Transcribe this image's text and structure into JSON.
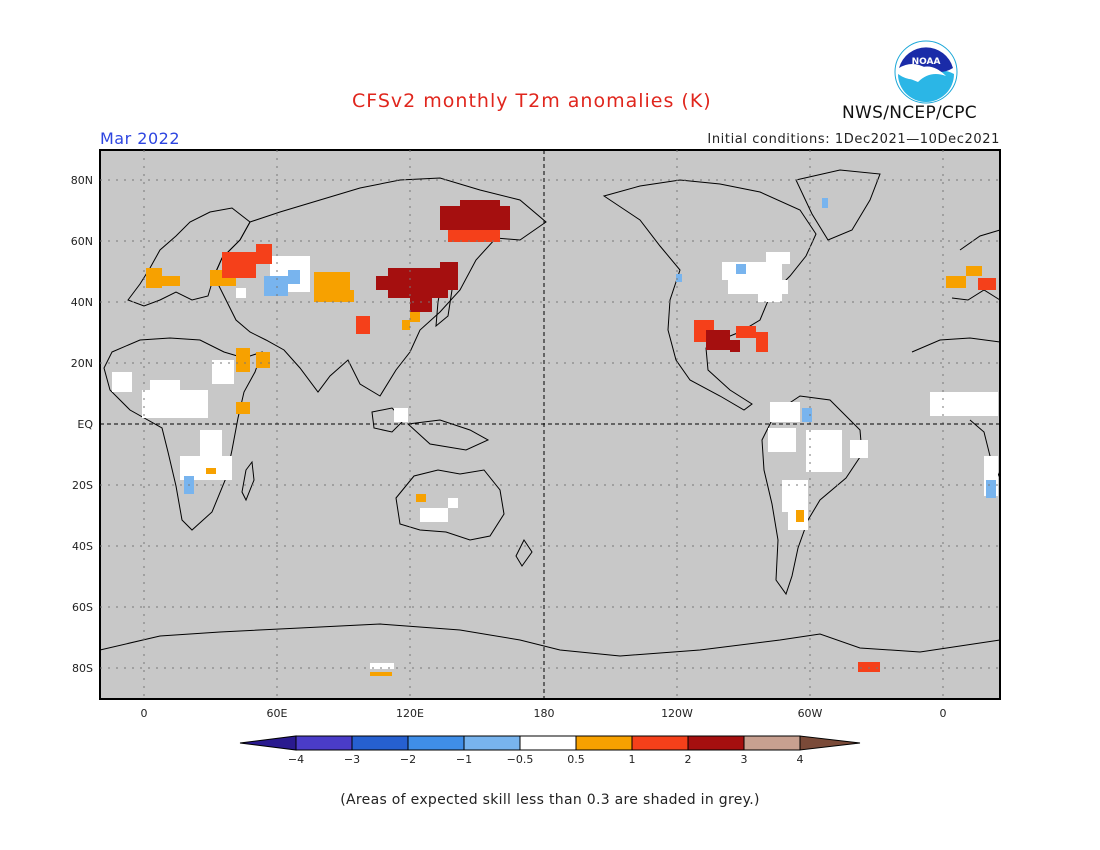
{
  "header": {
    "title": "CFSv2 monthly T2m anomalies (K)",
    "valid_month": "Mar 2022",
    "initial_conditions": "Initial conditions: 1Dec2021—10Dec2021",
    "agency": "NWS/NCEP/CPC",
    "logo_text": "NOAA"
  },
  "map": {
    "lat_labels": [
      "80N",
      "60N",
      "40N",
      "20N",
      "EQ",
      "20S",
      "40S",
      "60S",
      "80S"
    ],
    "lon_labels": [
      "0",
      "60E",
      "120E",
      "180",
      "120W",
      "60W",
      "0"
    ],
    "colors": {
      "grey_low_skill": "#c8c8c8",
      "near_zero": "#ffffff",
      "ocean_frame": "#000000"
    },
    "anomaly_regions": [
      {
        "region": "Eastern Siberia",
        "class": "2 to 3"
      },
      {
        "region": "Northeast China / Mongolia",
        "class": "2 to 3"
      },
      {
        "region": "Southern US / Mexico",
        "class": "2 to 3"
      },
      {
        "region": "Southeastern US",
        "class": "1 to 2"
      },
      {
        "region": "Western Russia",
        "class": "1 to 2"
      },
      {
        "region": "Southern Europe",
        "class": "0.5 to 1"
      },
      {
        "region": "Central Asia",
        "class": "-1 to -0.5"
      },
      {
        "region": "Great Lakes / Northeastern US",
        "class": "-0.5 to 0.5"
      }
    ]
  },
  "colorbar": {
    "tick_labels": [
      "−4",
      "−3",
      "−2",
      "−1",
      "−0.5",
      "0.5",
      "1",
      "2",
      "3",
      "4"
    ],
    "bins": [
      {
        "range": "< -4",
        "color": "#2a1a8f"
      },
      {
        "range": "-4 to -3",
        "color": "#4a3cc8"
      },
      {
        "range": "-3 to -2",
        "color": "#2660d0"
      },
      {
        "range": "-2 to -1",
        "color": "#3f8ee8"
      },
      {
        "range": "-1 to -0.5",
        "color": "#78b4ee"
      },
      {
        "range": "-0.5 to 0.5",
        "color": "#ffffff"
      },
      {
        "range": "0.5 to 1",
        "color": "#f7a100"
      },
      {
        "range": "1 to 2",
        "color": "#f5401a"
      },
      {
        "range": "2 to 3",
        "color": "#a50f0f"
      },
      {
        "range": "3 to 4",
        "color": "#c8a090"
      },
      {
        "range": "> 4",
        "color": "#7a4a38"
      }
    ]
  },
  "footer": {
    "note": "(Areas of expected skill less than 0.3 are shaded in grey.)"
  }
}
